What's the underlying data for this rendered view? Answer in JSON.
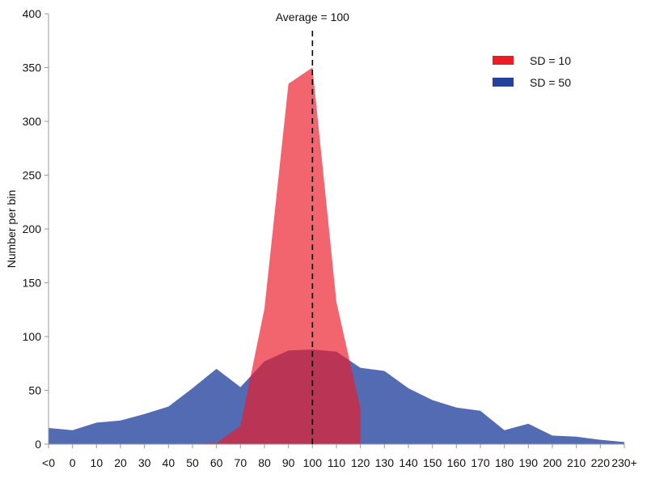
{
  "chart_data": {
    "type": "area",
    "title": "",
    "xlabel": "",
    "ylabel": "Number per bin",
    "ylim": [
      0,
      400
    ],
    "yticks": [
      0,
      50,
      100,
      150,
      200,
      250,
      300,
      350,
      400
    ],
    "grid": false,
    "legend_position": "top-right",
    "categories": [
      "<0",
      "0",
      "10",
      "20",
      "30",
      "40",
      "50",
      "60",
      "70",
      "80",
      "90",
      "100",
      "110",
      "120",
      "130",
      "140",
      "150",
      "160",
      "170",
      "180",
      "190",
      "200",
      "210",
      "220",
      "230+"
    ],
    "series": [
      {
        "name": "SD = 50",
        "color": "#536bb2",
        "legend_color": "#26419a",
        "values": [
          15,
          13,
          20,
          22,
          28,
          35,
          52,
          70,
          53,
          77,
          87,
          88,
          86,
          71,
          68,
          52,
          41,
          34,
          31,
          13,
          19,
          8,
          7,
          4,
          2
        ]
      },
      {
        "name": "SD = 10",
        "color": "#ec1b2a",
        "legend_color": "#ec1c24",
        "values": [
          null,
          null,
          null,
          null,
          null,
          null,
          0,
          1,
          17,
          126,
          335,
          350,
          132,
          33,
          null,
          null,
          null,
          null,
          null,
          null,
          null,
          null,
          null,
          null,
          null
        ]
      }
    ],
    "annotations": [
      {
        "type": "vertical-dashed-line",
        "x": "100",
        "label": "Average = 100"
      }
    ]
  }
}
